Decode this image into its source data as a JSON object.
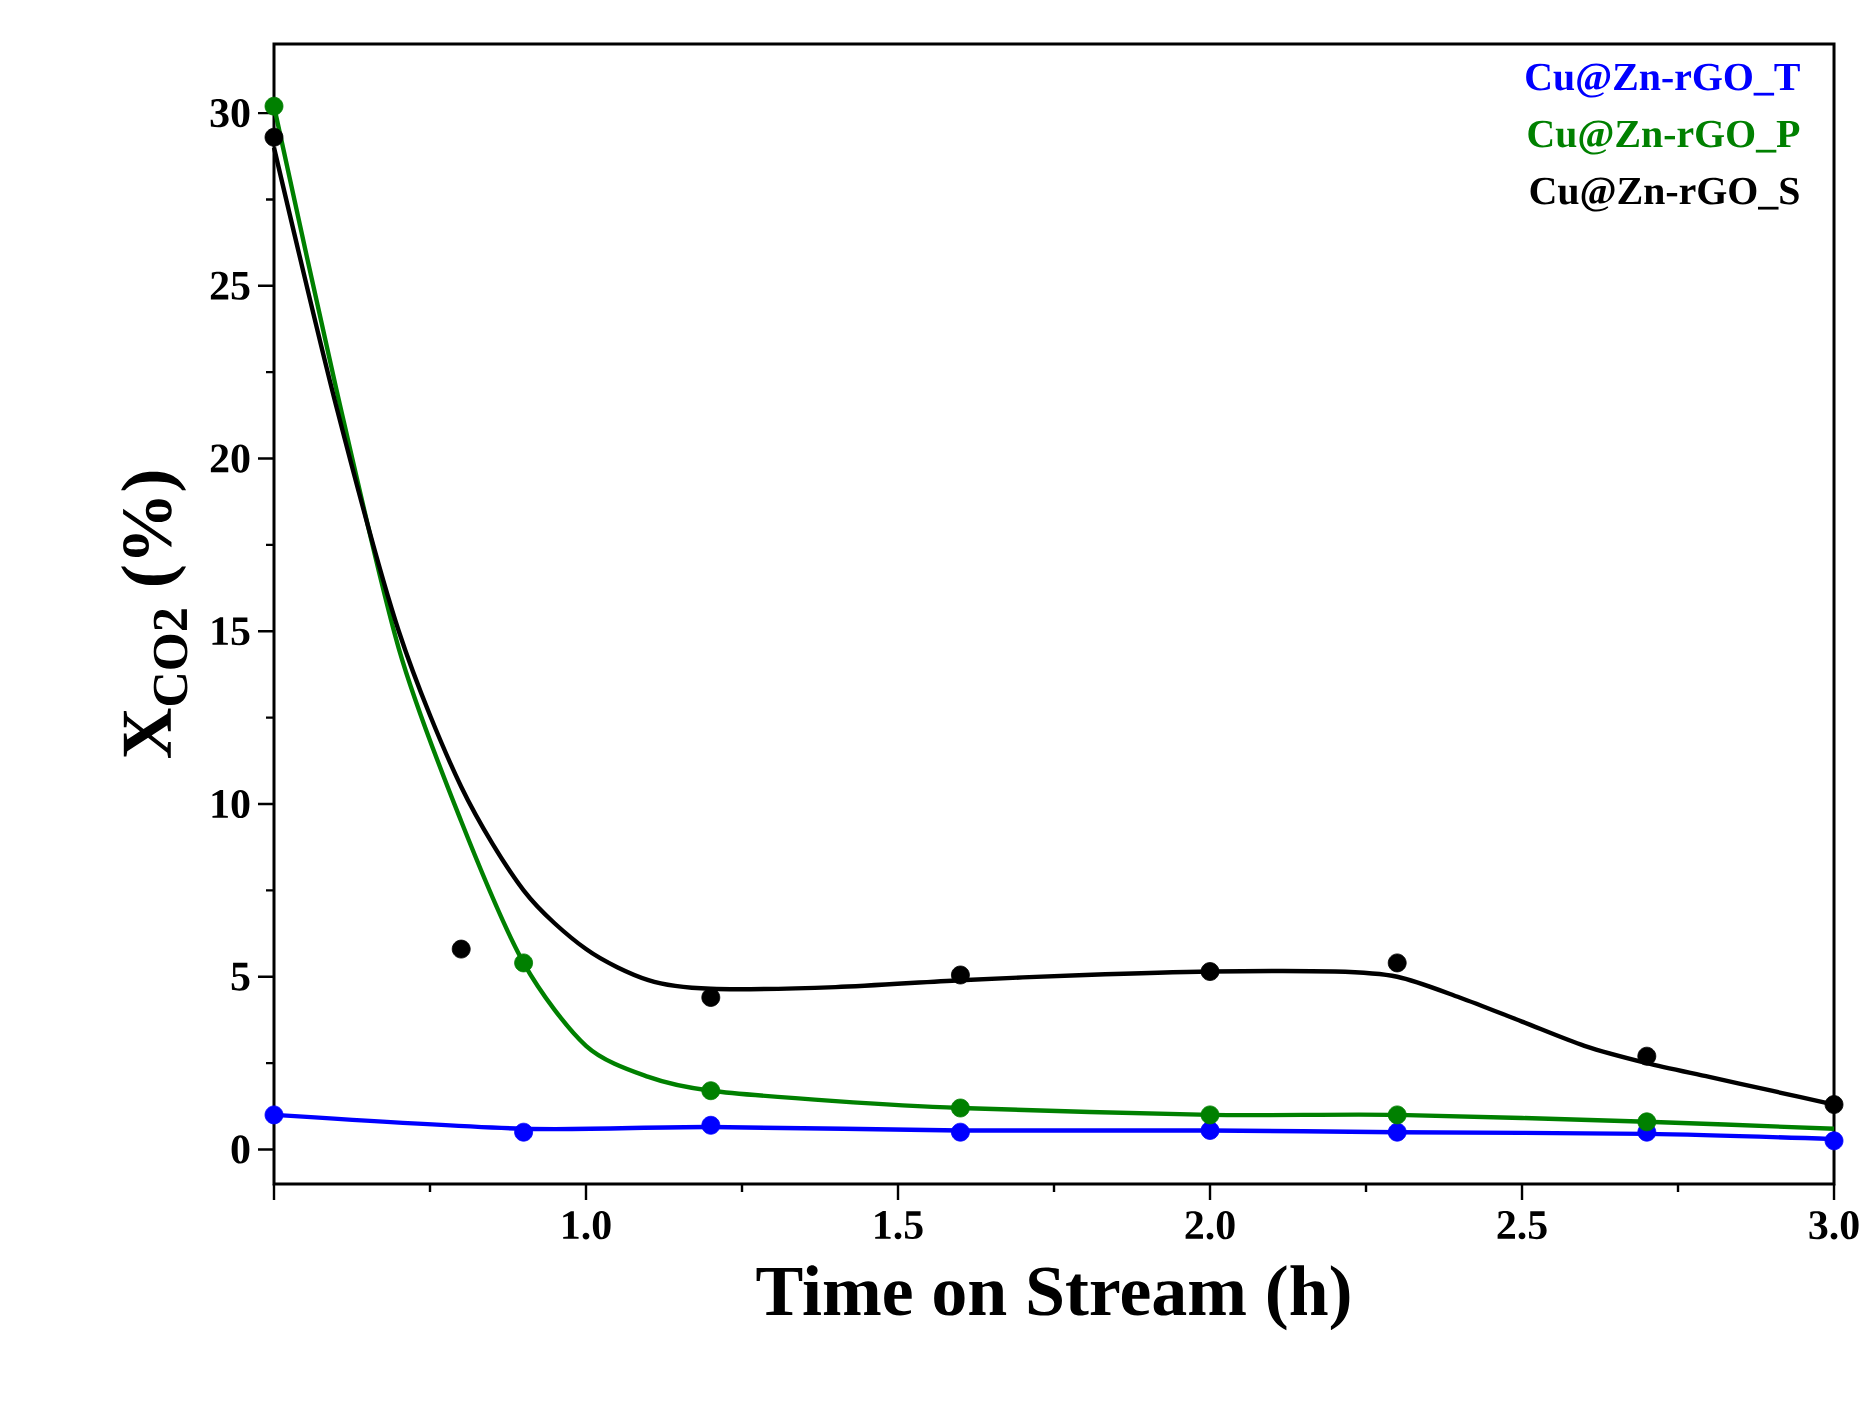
{
  "chart_data": {
    "type": "scatter",
    "xlabel": "Time on Stream (h)",
    "ylabel": "X$_{CO2}$ (%)",
    "xlim": [
      0.5,
      3.0
    ],
    "ylim": [
      -1,
      32
    ],
    "xticks": [
      {
        "value": 0.5,
        "label": null
      },
      {
        "value": 1.0,
        "label": "1.0"
      },
      {
        "value": 1.5,
        "label": "1.5"
      },
      {
        "value": 2.0,
        "label": "2.0"
      },
      {
        "value": 2.5,
        "label": "2.5"
      },
      {
        "value": 3.0,
        "label": "3.0"
      }
    ],
    "yticks": [
      0,
      5,
      10,
      15,
      20,
      25,
      30
    ],
    "grid": false,
    "legend": "top right",
    "marker": "circle",
    "series": [
      {
        "name": "Cu@Zn-rGO_T",
        "color": "#0000ff",
        "x": [
          0.5,
          0.9,
          1.2,
          1.6,
          2.0,
          2.3,
          2.7,
          3.0
        ],
        "values": [
          1.0,
          0.5,
          0.7,
          0.5,
          0.55,
          0.5,
          0.5,
          0.25
        ]
      },
      {
        "name": "Cu@Zn-rGO_P",
        "color": "#008000",
        "x": [
          0.5,
          0.9,
          1.2,
          1.6,
          2.0,
          2.3,
          2.7
        ],
        "values": [
          30.2,
          5.4,
          1.7,
          1.2,
          1.0,
          1.0,
          0.8
        ]
      },
      {
        "name": "Cu@Zn-rGO_S",
        "color": "#000000",
        "x": [
          0.5,
          0.8,
          1.2,
          1.6,
          2.0,
          2.3,
          2.7,
          3.0
        ],
        "values": [
          29.3,
          5.8,
          4.4,
          5.05,
          5.15,
          5.4,
          2.7,
          1.3
        ]
      },
      {
        "type": "line",
        "marker": "none",
        "line_style": "solid",
        "color": "#0000ff",
        "x": [
          0.5,
          0.9,
          1.2,
          1.6,
          2.0,
          2.3,
          2.7,
          3.0
        ],
        "values": [
          1.0,
          0.6,
          0.65,
          0.55,
          0.55,
          0.5,
          0.45,
          0.3
        ]
      },
      {
        "type": "line",
        "marker": "none",
        "line_style": "solid",
        "color": "#008000",
        "x": [
          0.5,
          0.6,
          0.7,
          0.8,
          0.9,
          1.0,
          1.1,
          1.2,
          1.4,
          1.6,
          2.0,
          2.3,
          2.7,
          3.0
        ],
        "values": [
          30.2,
          22,
          14.5,
          9.5,
          5.4,
          3.0,
          2.1,
          1.7,
          1.4,
          1.2,
          1.0,
          1.0,
          0.8,
          0.6
        ]
      },
      {
        "type": "line",
        "marker": "none",
        "line_style": "solid",
        "color": "#000000",
        "x": [
          0.5,
          0.6,
          0.7,
          0.8,
          0.9,
          1.0,
          1.1,
          1.2,
          1.4,
          1.6,
          1.8,
          2.0,
          2.2,
          2.3,
          2.4,
          2.5,
          2.6,
          2.7,
          2.8,
          2.9,
          3.0
        ],
        "values": [
          29,
          21.5,
          15,
          10.5,
          7.5,
          5.8,
          4.9,
          4.65,
          4.7,
          4.9,
          5.05,
          5.15,
          5.15,
          5.0,
          4.4,
          3.7,
          3.0,
          2.5,
          2.1,
          1.7,
          1.3
        ]
      }
    ]
  }
}
